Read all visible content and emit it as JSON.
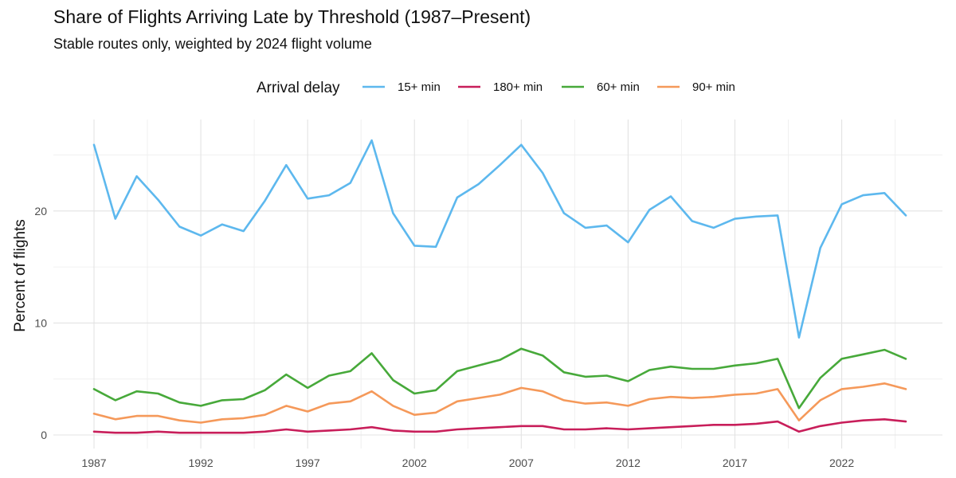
{
  "chart_data": {
    "type": "line",
    "title": "Share of Flights Arriving Late by Threshold (1987–Present)",
    "subtitle": "Stable routes only, weighted by 2024 flight volume",
    "xlabel": "",
    "ylabel": "Percent of flights",
    "xlim": [
      1987,
      2025
    ],
    "ylim": [
      0,
      27
    ],
    "x_ticks": [
      1987,
      1992,
      1997,
      2002,
      2007,
      2012,
      2017,
      2022
    ],
    "y_ticks": [
      0,
      10,
      20
    ],
    "legend": {
      "title": "Arrival delay",
      "position": "top"
    },
    "grid": true,
    "x": [
      1987,
      1988,
      1989,
      1990,
      1991,
      1992,
      1993,
      1994,
      1995,
      1996,
      1997,
      1998,
      1999,
      2000,
      2001,
      2002,
      2003,
      2004,
      2005,
      2006,
      2007,
      2008,
      2009,
      2010,
      2011,
      2012,
      2013,
      2014,
      2015,
      2016,
      2017,
      2018,
      2019,
      2020,
      2021,
      2022,
      2023,
      2024,
      2025
    ],
    "series": [
      {
        "name": "15+ min",
        "color": "#5DB8EE",
        "values": [
          25.9,
          19.3,
          23.1,
          21.0,
          18.6,
          17.8,
          18.8,
          18.2,
          20.9,
          24.1,
          21.1,
          21.4,
          22.5,
          26.3,
          19.8,
          16.9,
          16.8,
          21.2,
          22.4,
          24.1,
          25.9,
          23.4,
          19.8,
          18.5,
          18.7,
          17.2,
          20.1,
          21.3,
          19.1,
          18.5,
          19.3,
          19.5,
          19.6,
          8.7,
          16.7,
          20.6,
          21.4,
          21.6,
          19.6
        ]
      },
      {
        "name": "180+ min",
        "color": "#C81E5A",
        "values": [
          0.3,
          0.2,
          0.2,
          0.3,
          0.2,
          0.2,
          0.2,
          0.2,
          0.3,
          0.5,
          0.3,
          0.4,
          0.5,
          0.7,
          0.4,
          0.3,
          0.3,
          0.5,
          0.6,
          0.7,
          0.8,
          0.8,
          0.5,
          0.5,
          0.6,
          0.5,
          0.6,
          0.7,
          0.8,
          0.9,
          0.9,
          1.0,
          1.2,
          0.3,
          0.8,
          1.1,
          1.3,
          1.4,
          1.2
        ]
      },
      {
        "name": "60+ min",
        "color": "#47A93A",
        "values": [
          4.1,
          3.1,
          3.9,
          3.7,
          2.9,
          2.6,
          3.1,
          3.2,
          4.0,
          5.4,
          4.2,
          5.3,
          5.7,
          7.3,
          4.9,
          3.7,
          4.0,
          5.7,
          6.2,
          6.7,
          7.7,
          7.1,
          5.6,
          5.2,
          5.3,
          4.8,
          5.8,
          6.1,
          5.9,
          5.9,
          6.2,
          6.4,
          6.8,
          2.4,
          5.1,
          6.8,
          7.2,
          7.6,
          6.8
        ]
      },
      {
        "name": "90+ min",
        "color": "#F5995A",
        "values": [
          1.9,
          1.4,
          1.7,
          1.7,
          1.3,
          1.1,
          1.4,
          1.5,
          1.8,
          2.6,
          2.1,
          2.8,
          3.0,
          3.9,
          2.6,
          1.8,
          2.0,
          3.0,
          3.3,
          3.6,
          4.2,
          3.9,
          3.1,
          2.8,
          2.9,
          2.6,
          3.2,
          3.4,
          3.3,
          3.4,
          3.6,
          3.7,
          4.1,
          1.3,
          3.1,
          4.1,
          4.3,
          4.6,
          4.1
        ]
      }
    ]
  }
}
